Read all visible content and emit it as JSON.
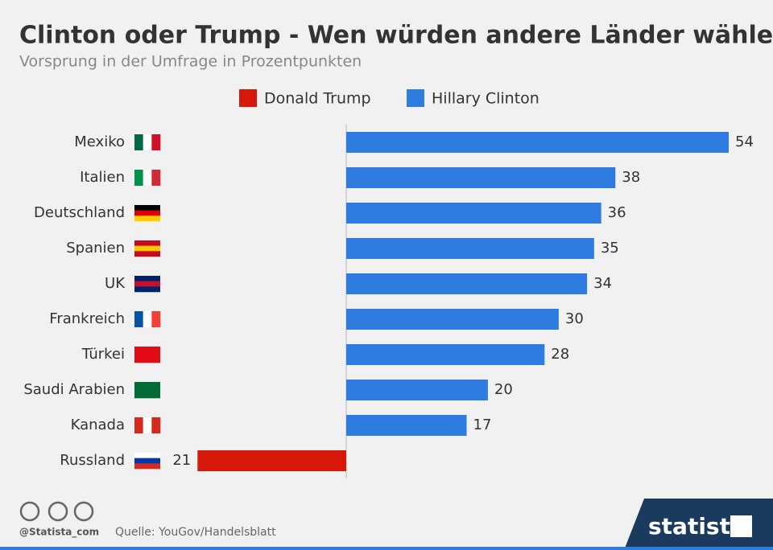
{
  "chart_data": {
    "type": "diverging-bar",
    "title": "Clinton oder Trump - Wen würden andere Länder wählen?",
    "subtitle": "Vorsprung in der Umfrage in Prozentpunkten",
    "categories": [
      "Mexiko",
      "Italien",
      "Deutschland",
      "Spanien",
      "UK",
      "Frankreich",
      "Türkei",
      "Saudi Arabien",
      "Kanada",
      "Russland"
    ],
    "series": [
      {
        "name": "Donald Trump",
        "color": "#d7190b",
        "direction": "left",
        "values": [
          null,
          null,
          null,
          null,
          null,
          null,
          null,
          null,
          null,
          21
        ]
      },
      {
        "name": "Hillary Clinton",
        "color": "#2e7ce0",
        "direction": "right",
        "values": [
          54,
          38,
          36,
          35,
          34,
          30,
          28,
          20,
          17,
          null
        ]
      }
    ],
    "xlim": [
      -26,
      54
    ],
    "source": "Quelle: YouGov/Handelsblatt",
    "credit": "@Statista_com",
    "brand": "statista"
  }
}
